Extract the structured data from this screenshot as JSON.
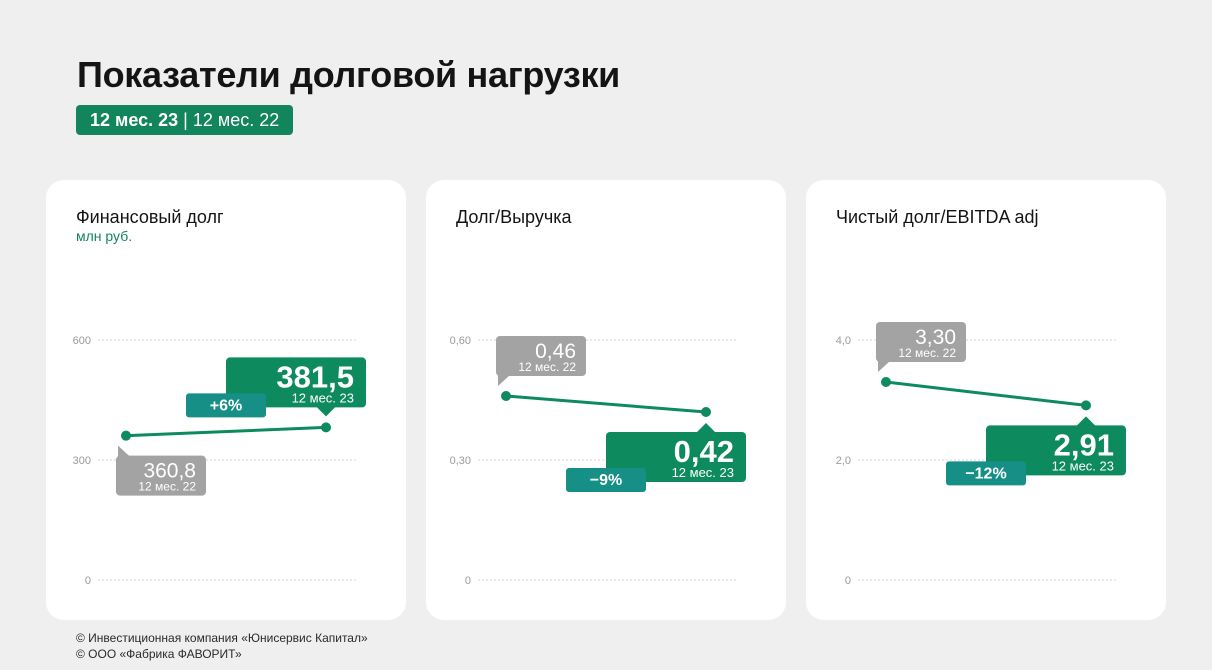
{
  "title": "Показатели долговой нагрузки",
  "period": {
    "current": "12 мес. 23",
    "separator": "|",
    "previous": "12 мес. 22"
  },
  "colors": {
    "current": "#0e8a5f",
    "previous": "#a3a3a3",
    "change": "#169087",
    "grid": "#d4d4d4",
    "axis_text": "#9a9a9a"
  },
  "chart_data": [
    {
      "type": "line",
      "title": "Финансовый долг",
      "unit": "млн руб.",
      "ylim": [
        0,
        600
      ],
      "ticks": [
        0,
        300,
        600
      ],
      "tick_labels": [
        "0",
        "300",
        "600"
      ],
      "x": [
        "12 мес. 22",
        "12 мес. 23"
      ],
      "values": [
        360.8,
        381.5
      ],
      "previous": {
        "value": "360,8",
        "period": "12 мес. 22"
      },
      "current": {
        "value": "381,5",
        "period": "12 мес. 23"
      },
      "change": "+6%",
      "grid": true
    },
    {
      "type": "line",
      "title": "Долг/Выручка",
      "ylim": [
        0,
        0.6
      ],
      "ticks": [
        0,
        0.3,
        0.6
      ],
      "tick_labels": [
        "0",
        "0,30",
        "0,60"
      ],
      "x": [
        "12 мес. 22",
        "12 мес. 23"
      ],
      "values": [
        0.46,
        0.42
      ],
      "previous": {
        "value": "0,46",
        "period": "12 мес. 22"
      },
      "current": {
        "value": "0,42",
        "period": "12 мес. 23"
      },
      "change": "−9%",
      "grid": true
    },
    {
      "type": "line",
      "title": "Чистый долг/EBITDA adj",
      "ylim": [
        0,
        4.0
      ],
      "ticks": [
        0,
        2.0,
        4.0
      ],
      "tick_labels": [
        "0",
        "2,0",
        "4,0"
      ],
      "x": [
        "12 мес. 22",
        "12 мес. 23"
      ],
      "values": [
        3.3,
        2.91
      ],
      "previous": {
        "value": "3,30",
        "period": "12 мес. 22"
      },
      "current": {
        "value": "2,91",
        "period": "12 мес. 23"
      },
      "change": "−12%",
      "grid": true
    }
  ],
  "footer": {
    "line1": "© Инвестиционная компания «Юнисервис Капитал»",
    "line2": "© ООО «Фабрика ФАВОРИТ»"
  }
}
